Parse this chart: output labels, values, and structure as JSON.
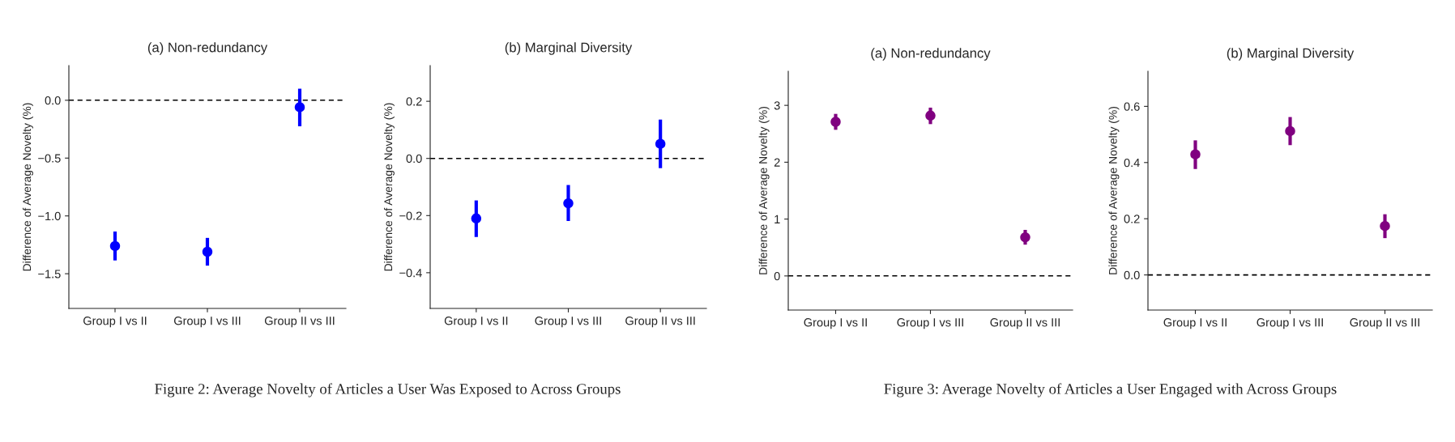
{
  "chart_data": [
    {
      "type": "scatter",
      "title": "(a) Non-redundancy",
      "ylabel": "Difference of Average Novelty (%)",
      "categories": [
        "Group I vs II",
        "Group I vs III",
        "Group II vs III"
      ],
      "values": [
        -1.26,
        -1.31,
        -0.06
      ],
      "errors": [
        [
          -1.385,
          -1.135
        ],
        [
          -1.43,
          -1.19
        ],
        [
          -0.225,
          0.1
        ]
      ],
      "color": "#0000ff",
      "marker": "circle",
      "ylim": [
        -1.8,
        0.3
      ],
      "yticks": [
        {
          "value": -1.5,
          "label": "−1.5"
        },
        {
          "value": -1.0,
          "label": "−1.0"
        },
        {
          "value": -0.5,
          "label": "−0.5"
        },
        {
          "value": 0,
          "label": "0.0"
        }
      ],
      "ref_lines": [
        {
          "axis": "y",
          "value": 0,
          "color": "#000000",
          "line_style": "dashed"
        }
      ],
      "grid": false,
      "annotations": [
        "Figure 2: Average Novelty of Articles a User Was Exposed to Across Groups"
      ]
    },
    {
      "type": "scatter",
      "title": "(b) Marginal Diversity",
      "ylabel": "Difference of Average Novelty (%)",
      "categories": [
        "Group I vs II",
        "Group I vs III",
        "Group II vs III"
      ],
      "values": [
        -0.21,
        -0.157,
        0.051
      ],
      "errors": [
        [
          -0.275,
          -0.147
        ],
        [
          -0.219,
          -0.093
        ],
        [
          -0.034,
          0.136
        ]
      ],
      "color": "#0000ff",
      "marker": "circle",
      "ylim": [
        -0.525,
        0.325
      ],
      "yticks": [
        {
          "value": -0.4,
          "label": "−0.4"
        },
        {
          "value": -0.2,
          "label": "−0.2"
        },
        {
          "value": 0,
          "label": "0.0"
        },
        0.2
      ],
      "ref_lines": [
        {
          "axis": "y",
          "value": 0,
          "color": "#000000",
          "line_style": "dashed"
        }
      ],
      "grid": false
    },
    {
      "type": "scatter",
      "title": "(a) Non-redundancy",
      "ylabel": "Difference of Average Novelty (%)",
      "categories": [
        "Group I vs II",
        "Group I vs III",
        "Group II vs III"
      ],
      "values": [
        2.71,
        2.82,
        0.68
      ],
      "errors": [
        [
          2.57,
          2.85
        ],
        [
          2.67,
          2.96
        ],
        [
          0.55,
          0.81
        ]
      ],
      "color": "#800080",
      "marker": "circle",
      "ylim": [
        -0.6,
        3.6
      ],
      "yticks": [
        0,
        1,
        2,
        3
      ],
      "ref_lines": [
        {
          "axis": "y",
          "value": 0,
          "color": "#000000",
          "line_style": "dashed"
        }
      ],
      "grid": false,
      "annotations": [
        "Figure 3: Average Novelty of Articles a User Engaged with Across Groups"
      ]
    },
    {
      "type": "scatter",
      "title": "(b) Marginal Diversity",
      "ylabel": "Difference of Average Novelty (%)",
      "categories": [
        "Group I vs II",
        "Group I vs III",
        "Group II vs III"
      ],
      "values": [
        0.429,
        0.512,
        0.174
      ],
      "errors": [
        [
          0.377,
          0.479
        ],
        [
          0.462,
          0.562
        ],
        [
          0.131,
          0.216
        ]
      ],
      "color": "#800080",
      "marker": "circle",
      "ylim": [
        -0.125,
        0.725
      ],
      "yticks": [
        {
          "value": 0,
          "label": "0.0"
        },
        0.2,
        0.4,
        0.6
      ],
      "ref_lines": [
        {
          "axis": "y",
          "value": 0,
          "color": "#000000",
          "line_style": "dashed"
        }
      ],
      "grid": false
    }
  ]
}
